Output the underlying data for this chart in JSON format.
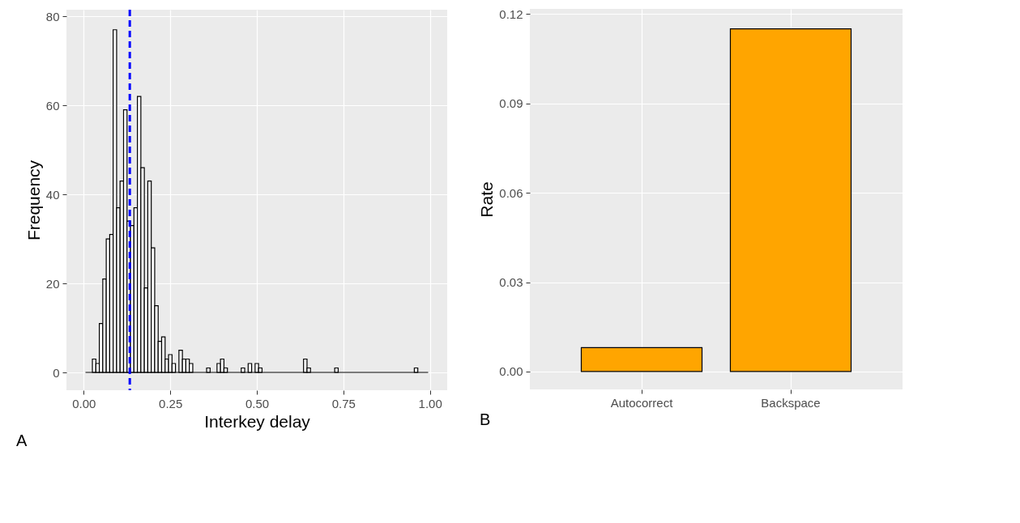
{
  "chart_data": [
    {
      "type": "histogram",
      "xlabel": "Interkey delay",
      "ylabel": "Frequency",
      "annotations": [
        "A"
      ],
      "bins": [
        0.005,
        0.015,
        0.025,
        0.035,
        0.045,
        0.055,
        0.065,
        0.075,
        0.085,
        0.095,
        0.105,
        0.115,
        0.125,
        0.135,
        0.145,
        0.155,
        0.165,
        0.175,
        0.185,
        0.195,
        0.205,
        0.215,
        0.225,
        0.235,
        0.245,
        0.255,
        0.265,
        0.275,
        0.285,
        0.295,
        0.305,
        0.315,
        0.325,
        0.335,
        0.345,
        0.355,
        0.365,
        0.375,
        0.385,
        0.395,
        0.405,
        0.415,
        0.425,
        0.435,
        0.445,
        0.455,
        0.465,
        0.475,
        0.485,
        0.495,
        0.505,
        0.515,
        0.525,
        0.535,
        0.545,
        0.555,
        0.565,
        0.575,
        0.585,
        0.595,
        0.605,
        0.615,
        0.625,
        0.635,
        0.645,
        0.655,
        0.665,
        0.675,
        0.685,
        0.695,
        0.705,
        0.715,
        0.725,
        0.735,
        0.745,
        0.755,
        0.765,
        0.775,
        0.785,
        0.795,
        0.805,
        0.815,
        0.825,
        0.835,
        0.845,
        0.855,
        0.865,
        0.875,
        0.885,
        0.895,
        0.905,
        0.915,
        0.925,
        0.935,
        0.945,
        0.955,
        0.965,
        0.975,
        0.985,
        0.995
      ],
      "series": [
        {
          "color": "#ffffff",
          "values": [
            0,
            0,
            3,
            2,
            11,
            21,
            30,
            31,
            77,
            37,
            43,
            59,
            34,
            33,
            37,
            62,
            46,
            19,
            43,
            28,
            15,
            7,
            8,
            3,
            4,
            2,
            0,
            5,
            3,
            3,
            2,
            0,
            0,
            0,
            0,
            1,
            0,
            0,
            2,
            3,
            1,
            0,
            0,
            0,
            0,
            1,
            0,
            2,
            0,
            2,
            1,
            0,
            0,
            0,
            0,
            0,
            0,
            0,
            0,
            0,
            0,
            0,
            0,
            3,
            1,
            0,
            0,
            0,
            0,
            0,
            0,
            0,
            1,
            0,
            0,
            0,
            0,
            0,
            0,
            0,
            0,
            0,
            0,
            0,
            0,
            0,
            0,
            0,
            0,
            0,
            0,
            0,
            0,
            0,
            0,
            1,
            0,
            0,
            0
          ]
        }
      ],
      "xlim": [
        -0.05,
        1.05
      ],
      "xticks": [
        {
          "value": 0,
          "label": "0.00"
        },
        {
          "value": 0.25,
          "label": "0.25"
        },
        {
          "value": 0.5,
          "label": "0.50"
        },
        {
          "value": 0.75,
          "label": "0.75"
        },
        {
          "value": 1,
          "label": "1.00"
        }
      ],
      "ylim": [
        -4,
        81.5
      ],
      "yticks": [
        0,
        20,
        40,
        60,
        80
      ],
      "ref_lines": [
        {
          "axis": "x",
          "value": 0.133,
          "color": "#0000ff",
          "line_style": "dashed"
        }
      ],
      "grid": true
    },
    {
      "type": "bar",
      "ylabel": "Rate",
      "annotations": [
        "B"
      ],
      "categories": [
        "Autocorrect",
        "Backspace"
      ],
      "series": [
        {
          "color": "#ffa500",
          "values": [
            0.008,
            0.115
          ]
        }
      ],
      "ylim": [
        -0.006,
        0.1217
      ],
      "yticks": [
        {
          "value": 0,
          "label": "0.00"
        },
        {
          "value": 0.03,
          "label": "0.03"
        },
        {
          "value": 0.06,
          "label": "0.06"
        },
        {
          "value": 0.09,
          "label": "0.09"
        },
        {
          "value": 0.12,
          "label": "0.12"
        }
      ],
      "grid": true
    }
  ]
}
